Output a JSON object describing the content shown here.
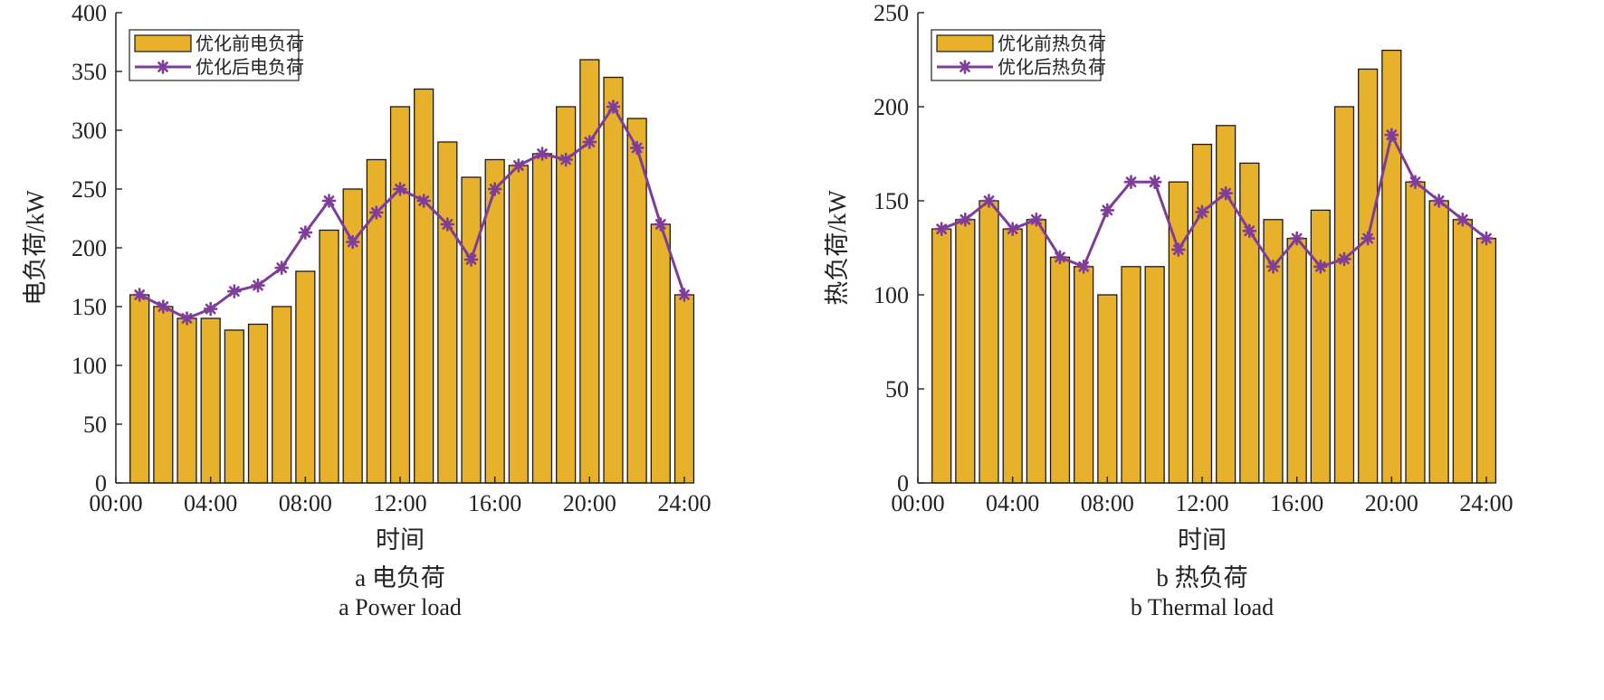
{
  "chart_data": [
    {
      "type": "bar",
      "caption_cn": "a  电负荷",
      "caption_en": "a  Power load",
      "xlabel": "时间",
      "ylabel": "电负荷/kW",
      "xlim": [
        0,
        24
      ],
      "ylim": [
        0,
        400
      ],
      "yticks": [
        0,
        50,
        100,
        150,
        200,
        250,
        300,
        350,
        400
      ],
      "xticks": [
        0,
        4,
        8,
        12,
        16,
        20,
        24
      ],
      "xtick_labels": [
        "00:00",
        "04:00",
        "08:00",
        "12:00",
        "16:00",
        "20:00",
        "24:00"
      ],
      "legend_position": "top-left",
      "hours": [
        1,
        2,
        3,
        4,
        5,
        6,
        7,
        8,
        9,
        10,
        11,
        12,
        13,
        14,
        15,
        16,
        17,
        18,
        19,
        20,
        21,
        22,
        23,
        24
      ],
      "series": [
        {
          "name": "优化前电负荷",
          "kind": "bar",
          "color": "#E8B12B",
          "values": [
            160,
            150,
            140,
            140,
            130,
            135,
            150,
            180,
            215,
            250,
            275,
            320,
            335,
            290,
            260,
            275,
            270,
            280,
            320,
            360,
            345,
            310,
            220,
            160
          ]
        },
        {
          "name": "优化后电负荷",
          "kind": "line",
          "color": "#7E3E98",
          "values": [
            160,
            150,
            140,
            148,
            163,
            168,
            183,
            213,
            240,
            205,
            230,
            250,
            240,
            220,
            190,
            250,
            270,
            280,
            275,
            290,
            320,
            285,
            220,
            160
          ]
        }
      ]
    },
    {
      "type": "bar",
      "caption_cn": "b  热负荷",
      "caption_en": "b  Thermal load",
      "xlabel": "时间",
      "ylabel": "热负荷/kW",
      "xlim": [
        0,
        24
      ],
      "ylim": [
        0,
        250
      ],
      "yticks": [
        0,
        50,
        100,
        150,
        200,
        250
      ],
      "xticks": [
        0,
        4,
        8,
        12,
        16,
        20,
        24
      ],
      "xtick_labels": [
        "00:00",
        "04:00",
        "08:00",
        "12:00",
        "16:00",
        "20:00",
        "24:00"
      ],
      "legend_position": "top-left",
      "hours": [
        1,
        2,
        3,
        4,
        5,
        6,
        7,
        8,
        9,
        10,
        11,
        12,
        13,
        14,
        15,
        16,
        17,
        18,
        19,
        20,
        21,
        22,
        23,
        24
      ],
      "series": [
        {
          "name": "优化前热负荷",
          "kind": "bar",
          "color": "#E8B12B",
          "values": [
            135,
            140,
            150,
            135,
            140,
            120,
            115,
            100,
            115,
            115,
            160,
            180,
            190,
            170,
            140,
            130,
            145,
            200,
            220,
            230,
            160,
            150,
            140,
            130
          ]
        },
        {
          "name": "优化后热负荷",
          "kind": "line",
          "color": "#7E3E98",
          "values": [
            135,
            140,
            150,
            135,
            140,
            120,
            115,
            145,
            160,
            160,
            124,
            144,
            154,
            134,
            115,
            130,
            115,
            119,
            130,
            185,
            160,
            150,
            140,
            130
          ]
        }
      ]
    }
  ]
}
